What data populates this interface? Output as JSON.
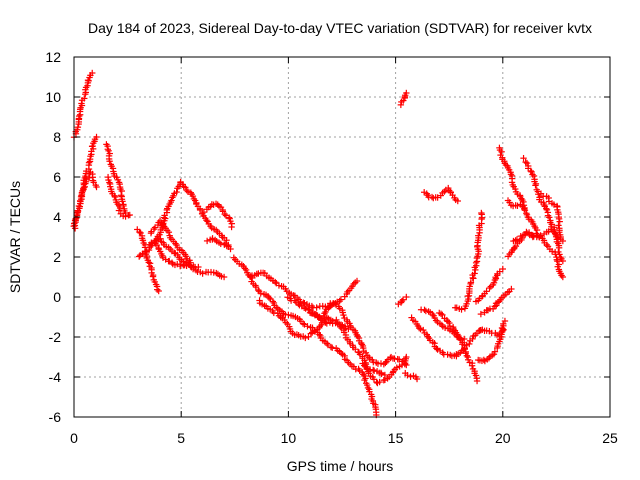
{
  "chart_data": {
    "type": "scatter",
    "title": "Day 184 of 2023, Sidereal Day-to-day VTEC variation (SDTVAR) for receiver kvtx",
    "xlabel": "GPS time / hours",
    "ylabel": "SDTVAR / TECUs",
    "xlim": [
      0,
      25
    ],
    "ylim": [
      -6,
      12
    ],
    "xticks": [
      "0",
      "5",
      "10",
      "15",
      "20",
      "25"
    ],
    "yticks": [
      "-6",
      "-4",
      "-2",
      "0",
      "2",
      "4",
      "6",
      "8",
      "10",
      "12"
    ],
    "grid": true,
    "marker": "plus",
    "color": "#ff0000",
    "tracks": [
      [
        [
          0.0,
          8.0
        ],
        [
          0.2,
          8.6
        ],
        [
          0.35,
          9.5
        ],
        [
          0.5,
          10.2
        ],
        [
          0.65,
          10.8
        ],
        [
          0.85,
          11.2
        ]
      ],
      [
        [
          0.0,
          3.4
        ],
        [
          0.15,
          4.0
        ],
        [
          0.3,
          5.0
        ],
        [
          0.45,
          5.6
        ],
        [
          0.6,
          6.2
        ],
        [
          0.75,
          7.0
        ],
        [
          0.9,
          7.6
        ],
        [
          1.05,
          8.0
        ]
      ],
      [
        [
          0.0,
          3.6
        ],
        [
          0.2,
          4.4
        ],
        [
          0.4,
          5.2
        ],
        [
          0.6,
          5.8
        ],
        [
          0.75,
          6.2
        ],
        [
          0.9,
          6.0
        ],
        [
          1.05,
          5.5
        ]
      ],
      [
        [
          1.5,
          7.6
        ],
        [
          1.7,
          6.8
        ],
        [
          1.9,
          6.2
        ],
        [
          2.1,
          5.6
        ],
        [
          2.3,
          4.8
        ],
        [
          2.4,
          4.2
        ]
      ],
      [
        [
          1.6,
          6.0
        ],
        [
          1.8,
          5.2
        ],
        [
          2.0,
          4.6
        ],
        [
          2.2,
          4.2
        ],
        [
          2.4,
          4.0
        ],
        [
          2.6,
          4.1
        ]
      ],
      [
        [
          3.0,
          3.4
        ],
        [
          3.2,
          2.8
        ],
        [
          3.4,
          2.2
        ],
        [
          3.6,
          1.2
        ],
        [
          3.8,
          0.6
        ],
        [
          3.95,
          0.3
        ]
      ],
      [
        [
          3.0,
          2.0
        ],
        [
          3.5,
          2.4
        ],
        [
          4.0,
          3.2
        ],
        [
          4.3,
          4.2
        ],
        [
          4.6,
          5.0
        ],
        [
          4.9,
          5.6
        ],
        [
          5.0,
          5.75
        ],
        [
          5.3,
          5.4
        ],
        [
          5.7,
          4.6
        ],
        [
          6.2,
          3.9
        ],
        [
          6.6,
          3.3
        ],
        [
          7.0,
          2.9
        ],
        [
          7.2,
          2.6
        ]
      ],
      [
        [
          3.6,
          3.2
        ],
        [
          4.0,
          3.8
        ],
        [
          4.4,
          3.2
        ],
        [
          4.8,
          2.6
        ],
        [
          5.2,
          2.0
        ],
        [
          5.5,
          1.6
        ],
        [
          5.8,
          1.5
        ]
      ],
      [
        [
          3.5,
          2.6
        ],
        [
          4.0,
          2.9
        ],
        [
          4.5,
          2.4
        ],
        [
          5.0,
          1.8
        ],
        [
          5.5,
          1.5
        ],
        [
          6.0,
          1.2
        ],
        [
          6.5,
          1.2
        ],
        [
          7.0,
          1.0
        ]
      ],
      [
        [
          3.8,
          2.8
        ],
        [
          4.2,
          2.0
        ],
        [
          4.6,
          1.6
        ],
        [
          5.0,
          1.6
        ],
        [
          5.4,
          1.6
        ]
      ],
      [
        [
          6.0,
          4.2
        ],
        [
          6.4,
          4.6
        ],
        [
          6.8,
          4.6
        ],
        [
          7.2,
          4.0
        ],
        [
          7.35,
          3.5
        ]
      ],
      [
        [
          6.2,
          2.8
        ],
        [
          6.6,
          2.9
        ],
        [
          7.0,
          2.6
        ],
        [
          7.3,
          2.4
        ]
      ],
      [
        [
          7.5,
          2.0
        ],
        [
          7.8,
          1.6
        ],
        [
          8.2,
          1.0
        ],
        [
          8.6,
          0.4
        ],
        [
          9.0,
          0.0
        ],
        [
          9.4,
          -0.4
        ],
        [
          9.8,
          -0.8
        ],
        [
          10.2,
          -1.0
        ],
        [
          10.6,
          -1.2
        ],
        [
          11.0,
          -1.5
        ],
        [
          11.4,
          -1.9
        ],
        [
          11.8,
          -2.3
        ],
        [
          12.2,
          -2.6
        ],
        [
          12.6,
          -3.0
        ],
        [
          13.0,
          -3.4
        ],
        [
          13.4,
          -3.8
        ],
        [
          13.8,
          -4.6
        ],
        [
          14.0,
          -5.3
        ],
        [
          14.1,
          -5.9
        ]
      ],
      [
        [
          8.2,
          1.0
        ],
        [
          8.8,
          1.2
        ],
        [
          9.4,
          0.8
        ],
        [
          10.0,
          0.2
        ],
        [
          10.6,
          -0.2
        ],
        [
          11.2,
          -0.5
        ],
        [
          11.8,
          -0.5
        ],
        [
          12.2,
          -0.3
        ],
        [
          12.6,
          0.0
        ],
        [
          13.0,
          0.6
        ],
        [
          13.2,
          0.8
        ]
      ],
      [
        [
          8.6,
          -0.2
        ],
        [
          9.2,
          -0.6
        ],
        [
          9.8,
          -1.2
        ],
        [
          10.2,
          -1.8
        ],
        [
          10.8,
          -2.0
        ],
        [
          11.4,
          -1.6
        ],
        [
          11.8,
          -1.0
        ],
        [
          12.2,
          -1.2
        ],
        [
          12.6,
          -1.8
        ],
        [
          13.0,
          -2.4
        ],
        [
          13.4,
          -3.0
        ],
        [
          13.8,
          -3.8
        ],
        [
          14.2,
          -4.3
        ],
        [
          14.6,
          -4.1
        ],
        [
          15.0,
          -3.6
        ],
        [
          15.4,
          -3.3
        ],
        [
          15.5,
          -3.0
        ]
      ],
      [
        [
          10.0,
          0.0
        ],
        [
          10.6,
          -0.5
        ],
        [
          11.2,
          -0.8
        ],
        [
          11.8,
          -1.3
        ],
        [
          12.4,
          -1.4
        ],
        [
          12.8,
          -1.6
        ]
      ],
      [
        [
          11.0,
          -0.8
        ],
        [
          11.6,
          -1.0
        ],
        [
          12.0,
          -0.3
        ],
        [
          12.4,
          -0.6
        ],
        [
          12.8,
          -1.2
        ],
        [
          13.2,
          -2.0
        ],
        [
          13.6,
          -2.8
        ],
        [
          14.0,
          -3.2
        ],
        [
          14.4,
          -3.4
        ],
        [
          14.8,
          -3.0
        ],
        [
          15.2,
          -3.1
        ],
        [
          15.5,
          -3.4
        ]
      ],
      [
        [
          13.5,
          -3.3
        ],
        [
          13.8,
          -3.6
        ],
        [
          14.2,
          -3.8
        ],
        [
          14.5,
          -3.9
        ]
      ],
      [
        [
          15.2,
          9.6
        ],
        [
          15.4,
          9.9
        ],
        [
          15.5,
          10.2
        ]
      ],
      [
        [
          15.1,
          -0.4
        ],
        [
          15.3,
          -0.2
        ],
        [
          15.5,
          0.0
        ]
      ],
      [
        [
          15.5,
          -3.8
        ],
        [
          15.8,
          -4.0
        ],
        [
          16.0,
          -4.1
        ]
      ],
      [
        [
          16.3,
          5.2
        ],
        [
          16.6,
          5.0
        ],
        [
          17.0,
          5.0
        ],
        [
          17.4,
          5.4
        ],
        [
          17.7,
          5.1
        ],
        [
          17.9,
          4.8
        ]
      ],
      [
        [
          15.8,
          -1.0
        ],
        [
          16.2,
          -1.6
        ],
        [
          16.6,
          -2.2
        ],
        [
          17.0,
          -2.6
        ],
        [
          17.4,
          -2.9
        ],
        [
          17.8,
          -3.0
        ],
        [
          18.2,
          -2.6
        ],
        [
          18.6,
          -2.0
        ],
        [
          19.0,
          -1.6
        ],
        [
          19.4,
          -1.7
        ],
        [
          19.8,
          -2.0
        ],
        [
          20.0,
          -1.6
        ]
      ],
      [
        [
          16.2,
          -0.6
        ],
        [
          16.6,
          -0.8
        ],
        [
          17.0,
          -1.2
        ],
        [
          17.4,
          -1.6
        ],
        [
          17.8,
          -1.9
        ],
        [
          18.2,
          -2.1
        ]
      ],
      [
        [
          17.0,
          -0.8
        ],
        [
          17.4,
          -1.1
        ],
        [
          17.8,
          -1.8
        ],
        [
          18.2,
          -2.5
        ],
        [
          18.4,
          -3.0
        ],
        [
          18.6,
          -3.6
        ],
        [
          18.8,
          -4.2
        ]
      ],
      [
        [
          17.8,
          -0.5
        ],
        [
          18.2,
          -0.6
        ],
        [
          18.4,
          0.0
        ],
        [
          18.6,
          1.0
        ],
        [
          18.8,
          2.0
        ],
        [
          18.9,
          3.0
        ],
        [
          19.0,
          4.2
        ]
      ],
      [
        [
          18.8,
          -3.2
        ],
        [
          19.2,
          -3.2
        ],
        [
          19.6,
          -2.8
        ],
        [
          19.9,
          -2.0
        ],
        [
          20.1,
          -1.2
        ]
      ],
      [
        [
          18.8,
          -0.2
        ],
        [
          19.2,
          0.2
        ],
        [
          19.5,
          0.6
        ],
        [
          19.8,
          1.2
        ],
        [
          20.0,
          1.4
        ]
      ],
      [
        [
          19.0,
          -0.8
        ],
        [
          19.5,
          -0.6
        ],
        [
          20.0,
          0.0
        ],
        [
          20.4,
          0.4
        ]
      ],
      [
        [
          19.8,
          7.4
        ],
        [
          20.0,
          7.0
        ],
        [
          20.2,
          6.5
        ],
        [
          20.4,
          6.0
        ],
        [
          20.6,
          5.4
        ],
        [
          20.8,
          5.0
        ],
        [
          21.0,
          4.6
        ],
        [
          21.2,
          4.0
        ],
        [
          21.4,
          3.6
        ],
        [
          21.6,
          3.2
        ],
        [
          21.8,
          2.9
        ],
        [
          22.0,
          2.6
        ],
        [
          22.2,
          2.4
        ],
        [
          22.4,
          2.2
        ],
        [
          22.6,
          1.5
        ],
        [
          22.8,
          1.0
        ]
      ],
      [
        [
          20.5,
          2.8
        ],
        [
          20.8,
          3.0
        ],
        [
          21.2,
          3.2
        ],
        [
          21.6,
          3.0
        ],
        [
          22.0,
          3.2
        ],
        [
          22.3,
          3.4
        ],
        [
          22.6,
          3.0
        ],
        [
          22.8,
          2.8
        ]
      ],
      [
        [
          20.2,
          2.0
        ],
        [
          20.5,
          2.4
        ],
        [
          20.8,
          2.8
        ],
        [
          21.1,
          3.2
        ],
        [
          21.4,
          3.0
        ]
      ],
      [
        [
          21.0,
          6.9
        ],
        [
          21.2,
          6.6
        ],
        [
          21.4,
          6.0
        ],
        [
          21.6,
          5.4
        ],
        [
          21.8,
          4.8
        ],
        [
          22.0,
          4.4
        ],
        [
          22.2,
          4.0
        ],
        [
          22.4,
          3.2
        ],
        [
          22.6,
          2.4
        ],
        [
          22.8,
          1.8
        ]
      ],
      [
        [
          21.8,
          5.2
        ],
        [
          22.0,
          5.0
        ],
        [
          22.2,
          4.8
        ],
        [
          22.5,
          4.6
        ],
        [
          22.7,
          3.0
        ]
      ],
      [
        [
          20.2,
          4.8
        ],
        [
          20.4,
          4.6
        ],
        [
          20.8,
          4.6
        ],
        [
          21.0,
          4.4
        ]
      ]
    ]
  }
}
